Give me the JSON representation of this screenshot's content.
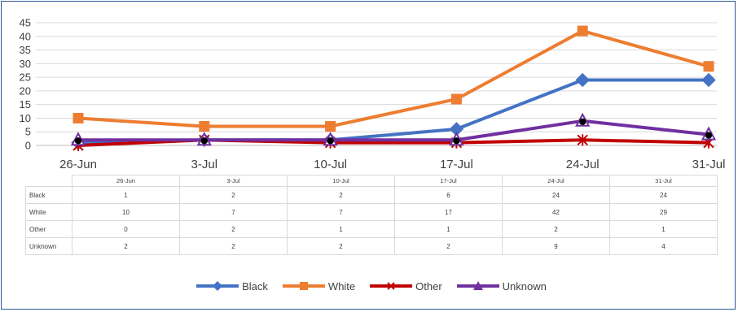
{
  "chart_data": {
    "type": "line",
    "title": "",
    "xlabel": "",
    "ylabel": "",
    "categories": [
      "26-Jun",
      "3-Jul",
      "10-Jul",
      "17-Jul",
      "24-Jul",
      "31-Jul"
    ],
    "yticks": [
      0,
      5,
      10,
      15,
      20,
      25,
      30,
      35,
      40,
      45
    ],
    "ylim": [
      0,
      45
    ],
    "grid": true,
    "legend": "bottom",
    "series": [
      {
        "name": "Black",
        "values": [
          1,
          2,
          2,
          6,
          24,
          24
        ],
        "color": "#4472c4",
        "marker": "diamond"
      },
      {
        "name": "White",
        "values": [
          10,
          7,
          7,
          17,
          42,
          29
        ],
        "color": "#ed7d31",
        "marker": "square"
      },
      {
        "name": "Other",
        "values": [
          0,
          2,
          1,
          1,
          2,
          1
        ],
        "color": "#c00000",
        "marker": "star"
      },
      {
        "name": "Unknown",
        "values": [
          2,
          2,
          2,
          2,
          9,
          4
        ],
        "color": "#7030a0",
        "marker": "triangle"
      }
    ],
    "table": {
      "header": [
        "26-Jun",
        "3-Jul",
        "10-Jul",
        "17-Jul",
        "24-Jul",
        "31-Jul"
      ],
      "rows": [
        {
          "label": "Black",
          "values": [
            "1",
            "2",
            "2",
            "6",
            "24",
            "24"
          ]
        },
        {
          "label": "White",
          "values": [
            "10",
            "7",
            "7",
            "17",
            "42",
            "29"
          ]
        },
        {
          "label": "Other",
          "values": [
            "0",
            "2",
            "1",
            "1",
            "2",
            "1"
          ]
        },
        {
          "label": "Unknown",
          "values": [
            "2",
            "2",
            "2",
            "2",
            "9",
            "4"
          ]
        }
      ]
    }
  }
}
